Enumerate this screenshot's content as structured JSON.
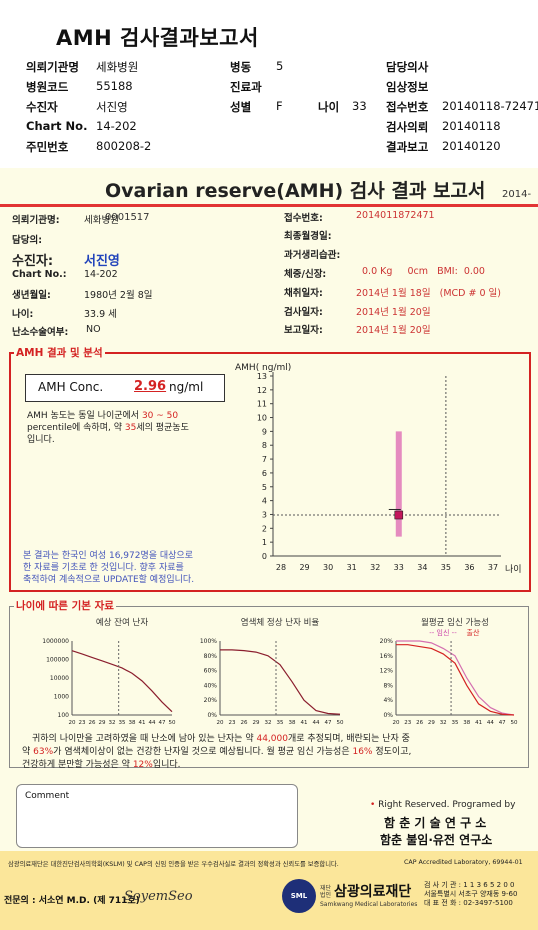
{
  "header": {
    "title": "AMH 검사결과보고서",
    "rows": [
      [
        {
          "label": "의뢰기관명",
          "value": "세화병원"
        },
        {
          "label": "병동",
          "value": "5"
        },
        {
          "label": "담당의사",
          "value": ""
        }
      ],
      [
        {
          "label": "병원코드",
          "value": "55188"
        },
        {
          "label": "진료과",
          "value": ""
        },
        {
          "label": "임상정보",
          "value": ""
        }
      ],
      [
        {
          "label": "수진자",
          "value": "서진영"
        },
        {
          "label": "성별",
          "value": "F"
        },
        {
          "label": "나이",
          "value": "33"
        },
        {
          "label": "접수번호",
          "value": "20140118-72471"
        }
      ],
      [
        {
          "label": "Chart No.",
          "value": "14-202"
        },
        {
          "label": "검사의뢰",
          "value": "20140118"
        }
      ],
      [
        {
          "label": "주민번호",
          "value": "800208-2"
        },
        {
          "label": "결과보고",
          "value": "20140120"
        }
      ]
    ]
  },
  "report": {
    "title": "Ovarian reserve(AMH) 검사 결과 보고서",
    "number": "2014-0001517",
    "left_fields": [
      {
        "label": "의뢰기관명:",
        "value": "세화병원"
      },
      {
        "label": "담당의:",
        "value": ""
      },
      {
        "label": "수진자:",
        "value": "서진영"
      },
      {
        "label": "Chart No.:",
        "value": "14-202"
      },
      {
        "label": "생년월일:",
        "value": "1980년 2월 8일"
      },
      {
        "label": "나이:",
        "value": "33.9 세"
      },
      {
        "label": "난소수술여부:",
        "value": "NO"
      }
    ],
    "right_fields": [
      {
        "label": "접수번호:",
        "value": "2014011872471"
      },
      {
        "label": "최종월경일:",
        "value": ""
      },
      {
        "label": "과거생리습관:",
        "value": ""
      },
      {
        "label": "체중/신장:",
        "value": "0.0 Kg     0cm   BMI:  0.00"
      },
      {
        "label": "채취일자:",
        "value": "2014년 1월 18일   (MCD # 0 일)"
      },
      {
        "label": "검사일자:",
        "value": "2014년 1월 20일"
      },
      {
        "label": "보고일자:",
        "value": "2014년 1월 20일"
      }
    ]
  },
  "amh": {
    "section_title": "AMH 결과 및 분석",
    "conc_label": "AMH Conc.",
    "conc_value": "2.96",
    "conc_unit": "ng/ml",
    "desc1": "AMH 농도는 동일 나이군에서",
    "pct_range": "30 ~ 50",
    "desc2": "percentile에 속하며, 약",
    "eq_age": "35",
    "desc3": "세의 평균농도",
    "desc4": "입니다.",
    "note1": "본 결과는 한국인 여성 16,972명을 대상으로",
    "note2": "한 자료를 기초로 한 것입니다. 향후 자료를",
    "note3": "축적하여 계속적으로 UPDATE할 예정입니다."
  },
  "chart_data": [
    {
      "type": "scatter",
      "title": "",
      "ylabel": "AMH( ng/ml)",
      "xlabel": "나이",
      "x_ticks": [
        28,
        29,
        30,
        31,
        32,
        33,
        34,
        35,
        36,
        37
      ],
      "y_ticks": [
        0,
        1,
        2,
        3,
        4,
        5,
        6,
        7,
        8,
        9,
        10,
        11,
        12,
        13
      ],
      "ylim": [
        0,
        13
      ],
      "patient": {
        "x": 33,
        "y": 2.96
      },
      "range_bar": {
        "x": 33,
        "low": 1.4,
        "high": 9.0,
        "color": "#e58bbf"
      },
      "guide_x": 35,
      "guide_y": 2.96
    },
    {
      "type": "line",
      "title": "예상 잔여 난자",
      "y_tick_labels": [
        "1000000",
        "100000",
        "10000",
        "1000",
        "100"
      ],
      "x_tick_labels": [
        "20",
        "23",
        "26",
        "29",
        "32",
        "35",
        "38",
        "41",
        "44",
        "47",
        "50"
      ],
      "log_scale": true,
      "x": [
        20,
        23,
        26,
        29,
        32,
        35,
        38,
        41,
        44,
        47,
        50
      ],
      "values": [
        300000,
        200000,
        130000,
        85000,
        55000,
        35000,
        18000,
        7000,
        2000,
        500,
        150
      ],
      "marker_x": 34
    },
    {
      "type": "line",
      "title": "염색체 정상 난자 비율",
      "y_tick_labels": [
        "100%",
        "80%",
        "60%",
        "40%",
        "20%",
        "0%"
      ],
      "x_tick_labels": [
        "20",
        "23",
        "26",
        "29",
        "32",
        "35",
        "38",
        "41",
        "44",
        "47",
        "50"
      ],
      "x": [
        20,
        23,
        26,
        29,
        32,
        35,
        38,
        41,
        44,
        47,
        50
      ],
      "values": [
        88,
        88,
        87,
        85,
        80,
        68,
        45,
        20,
        6,
        2,
        1
      ],
      "marker_x": 34
    },
    {
      "type": "line",
      "title": "월평균 임신 가능성",
      "subtitle_a": "-- 임신 --",
      "subtitle_b": "출산",
      "y_tick_labels": [
        "20%",
        "16%",
        "12%",
        "8%",
        "4%",
        "0%"
      ],
      "x_tick_labels": [
        "20",
        "23",
        "26",
        "29",
        "32",
        "35",
        "38",
        "41",
        "44",
        "47",
        "50"
      ],
      "x": [
        20,
        23,
        26,
        29,
        32,
        35,
        38,
        41,
        44,
        47,
        50
      ],
      "series": [
        {
          "name": "임신",
          "values": [
            20,
            20,
            20,
            19.5,
            18,
            16,
            10,
            5,
            2,
            0.5,
            0
          ]
        },
        {
          "name": "출산",
          "values": [
            19,
            19,
            18.5,
            18,
            16.5,
            14,
            8,
            3,
            1,
            0.2,
            0
          ]
        }
      ],
      "marker_x": 34
    }
  ],
  "basic": {
    "section_title": "나이에 따른 기본 자료",
    "s1a": "귀하의 나이만을 고려하였을 때 난소에 남아 있는 난자는 약",
    "eggs": "44,000",
    "s1b": "개로 추정되며, 배란되는 난자 중",
    "s2a": "약",
    "normal": "63%",
    "s2b": "가 염색체이상이 없는 건강한 난자일 것으로 예상됩니다. 월 평균 임신 가능성은",
    "preg": "16%",
    "s2c": "정도이고,",
    "s3a": "건강하게 분만할 가능성은 약",
    "birth": "12%",
    "s3b": "입니다."
  },
  "comment": {
    "label": "Comment",
    "text": ""
  },
  "credit": {
    "rights": "Right Reserved. Programed by",
    "lab1": "함 춘  기 술  연 구 소",
    "lab2": "함춘 불임·유전 연구소"
  },
  "footer": {
    "notice": "삼광의료재단은 대한진단검사의학회(KSLM) 및 CAP의 신임 인증을 받은 우수검사실로 결과의 정확성과 신뢰도를 보증합니다.",
    "cap": "CAP  Accredited  Laboratory,  69944-01",
    "doctor": "전문의 : 서소연 M.D. (제 711호)",
    "signature": "SoyemSeo",
    "org_small": "재단법인",
    "org": "삼광의료재단",
    "org_en": "Samkwang Medical Laboratories",
    "org_short": "SML",
    "code": "검 사 기 관 : 1 1 3 6 5 2 0 0",
    "addr": "서울특별시 서초구 양재동 9-60",
    "tel": "대 표 전 화 : 02-3497-5100"
  },
  "colors": {
    "accent_red": "#d42222",
    "bar_pink": "#e58bbf",
    "marker": "#c2185b",
    "name_blue": "#2244bb",
    "report_bg": "#fdfce6"
  }
}
